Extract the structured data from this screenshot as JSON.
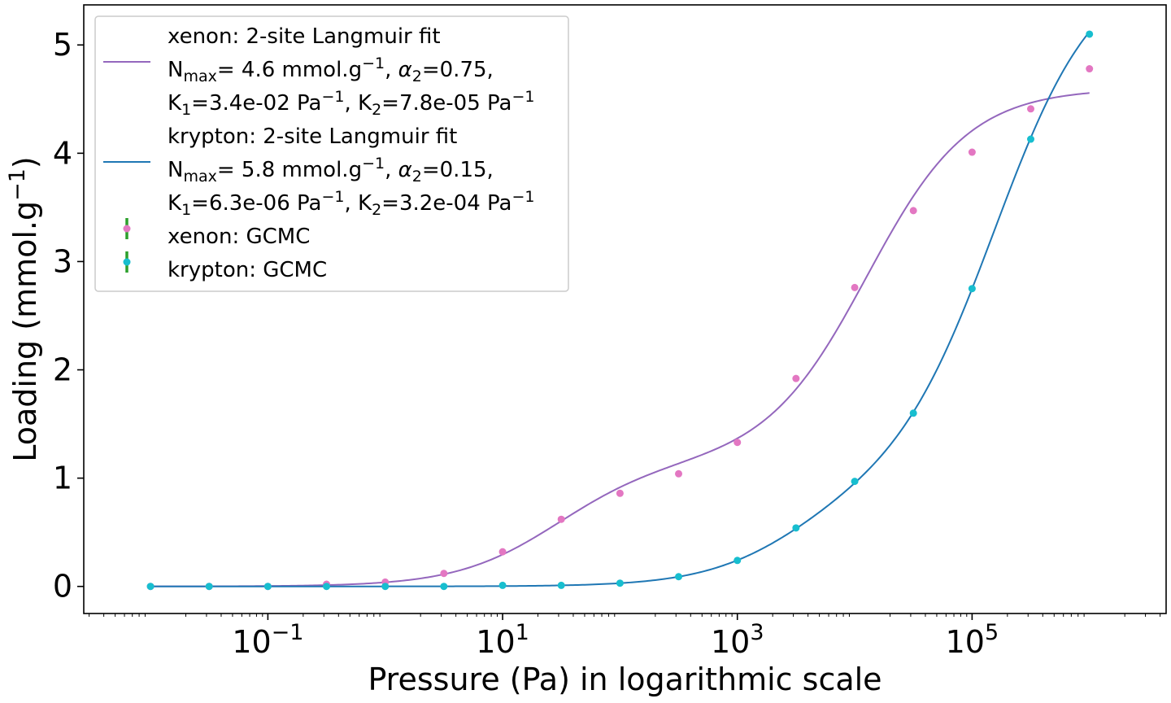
{
  "chart_data": {
    "type": "scatter",
    "title": "",
    "xlabel": "Pressure (Pa) in logarithmic scale",
    "ylabel_text": "Loading (mmol.g",
    "ylabel_sup": "−1",
    "ylabel_close": ")",
    "xscale": "log",
    "xlim": [
      0.0027,
      4500000
    ],
    "ylim": [
      -0.25,
      5.37
    ],
    "xticks": [
      {
        "value": 0.1,
        "base": "10",
        "exp": "−1"
      },
      {
        "value": 10,
        "base": "10",
        "exp": "1"
      },
      {
        "value": 1000,
        "base": "10",
        "exp": "3"
      },
      {
        "value": 100000,
        "base": "10",
        "exp": "5"
      }
    ],
    "yticks": [
      0,
      1,
      2,
      3,
      4,
      5
    ],
    "grid": false,
    "legend_position": "upper-left",
    "colors": {
      "xenon_fit": "#9467bd",
      "krypton_fit": "#1f77b4",
      "xenon_points": "#e377c2",
      "krypton_points": "#17becf",
      "errorbar": "#2ca02c"
    },
    "legend": [
      {
        "id": "xe-fit",
        "kind": "line",
        "color": "#9467bd",
        "lines": [
          "xenon: 2-site Langmuir fit",
          "N<sub>max</sub>=  4.6 mmol.g<sup>−1</sup>, <i>α</i><sub>2</sub>=0.75,",
          "K<sub>1</sub>=3.4e-02 Pa<sup>−1</sup>, K<sub>2</sub>=7.8e-05 Pa<sup>−1</sup>"
        ]
      },
      {
        "id": "kr-fit",
        "kind": "line",
        "color": "#1f77b4",
        "lines": [
          "krypton: 2-site Langmuir fit",
          "N<sub>max</sub>=  5.8 mmol.g<sup>−1</sup>, <i>α</i><sub>2</sub>=0.15,",
          "K<sub>1</sub>=6.3e-06 Pa<sup>−1</sup>, K<sub>2</sub>=3.2e-04 Pa<sup>−1</sup>"
        ]
      },
      {
        "id": "xe-gcmc",
        "kind": "marker",
        "color": "#e377c2",
        "lines": [
          "xenon: GCMC"
        ]
      },
      {
        "id": "kr-gcmc",
        "kind": "marker",
        "color": "#17becf",
        "lines": [
          "krypton: GCMC"
        ]
      }
    ],
    "fits": [
      {
        "name": "xenon: 2-site Langmuir fit",
        "color": "#9467bd",
        "Nmax": 4.6,
        "alpha2": 0.75,
        "K1": 0.034,
        "K2": 7.8e-05,
        "xrange": [
          0.01,
          1000000
        ]
      },
      {
        "name": "krypton: 2-site Langmuir fit",
        "color": "#1f77b4",
        "Nmax": 5.8,
        "alpha2": 0.15,
        "K1": 6.3e-06,
        "K2": 0.00032,
        "xrange": [
          0.01,
          1000000
        ]
      }
    ],
    "series": [
      {
        "name": "xenon: GCMC",
        "color": "#e377c2",
        "x": [
          0.01,
          0.0316,
          0.1,
          0.316,
          1,
          3.16,
          10,
          31.6,
          100,
          316,
          1000,
          3160,
          10000,
          31600,
          100000,
          316000,
          1000000
        ],
        "y": [
          0.0,
          0.0,
          0.0,
          0.02,
          0.04,
          0.12,
          0.32,
          0.62,
          0.86,
          1.04,
          1.33,
          1.92,
          2.76,
          3.47,
          4.01,
          4.41,
          4.78
        ]
      },
      {
        "name": "krypton: GCMC",
        "color": "#17becf",
        "x": [
          0.01,
          0.0316,
          0.1,
          0.316,
          1,
          3.16,
          10,
          31.6,
          100,
          316,
          1000,
          3160,
          10000,
          31600,
          100000,
          316000,
          1000000
        ],
        "y": [
          0.0,
          0.0,
          0.0,
          0.0,
          0.0,
          0.0,
          0.01,
          0.01,
          0.03,
          0.09,
          0.24,
          0.54,
          0.97,
          1.6,
          2.75,
          4.13,
          5.1
        ]
      }
    ]
  }
}
